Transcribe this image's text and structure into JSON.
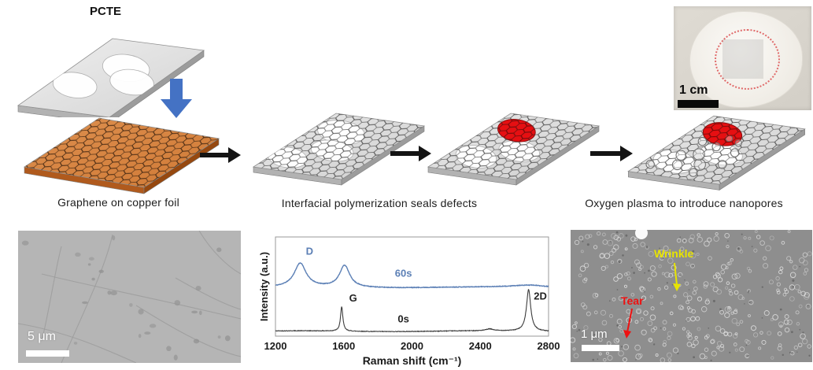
{
  "figure": {
    "steps": {
      "pcte_label": "PCTE",
      "copper_caption": "Graphene on copper foil",
      "ip_caption": "Interfacial polymerization seals defects",
      "plasma_caption": "Oxygen plasma to introduce nanopores"
    },
    "photo": {
      "scale_label": "1 cm"
    },
    "sem_left": {
      "scale_label": "5 μm"
    },
    "sem_right": {
      "scale_label": "1 μm",
      "wrinkle_label": "Wrinkle",
      "tear_label": "Tear",
      "wrinkle_color": "#e8e400",
      "tear_color": "#ee1111"
    },
    "colors": {
      "copper_top": "#d07a36",
      "copper_front": "#b05a1d",
      "copper_side": "#96480f",
      "slab_gray_light": "#e9e9e9",
      "slab_gray_dark": "#cfcfcf",
      "slab_front": "#b2b2b2",
      "slab_side": "#9c9c9c",
      "hex_line_gray": "#4d4d4d",
      "hex_line_copper": "#3e2410",
      "hex_line_red": "#8b0000",
      "seal_red": "#e60f12",
      "arrow_blue": "#4472c4",
      "arrow_black": "#141414"
    }
  },
  "chart_data": {
    "type": "line",
    "title": "",
    "xlabel": "Raman shift  (cm⁻¹)",
    "ylabel": "Intensity (a.u.)",
    "xlim": [
      1200,
      2800
    ],
    "xticks": [
      1200,
      1600,
      2000,
      2400,
      2800
    ],
    "grid": false,
    "legend_position": "inline",
    "series": [
      {
        "name": "60s",
        "color": "#5b7fb5",
        "baseline": 0.49,
        "peaks": [
          {
            "label": "D",
            "center": 1345,
            "height": 0.24,
            "hwhm": 42
          },
          {
            "center": 1605,
            "height": 0.22,
            "hwhm": 36
          },
          {
            "center": 2690,
            "height": 0.025,
            "hwhm": 120
          }
        ]
      },
      {
        "name": "0s",
        "color": "#3c3c3c",
        "baseline": 0.05,
        "peaks": [
          {
            "label": "G",
            "center": 1588,
            "height": 0.25,
            "hwhm": 8
          },
          {
            "center": 2455,
            "height": 0.018,
            "hwhm": 25
          },
          {
            "label": "2D",
            "center": 2683,
            "height": 0.42,
            "hwhm": 15
          }
        ]
      }
    ],
    "annotations": [
      {
        "text": "D",
        "x": 1400,
        "y": 0.82,
        "color": "#5b7fb5"
      },
      {
        "text": "60s",
        "x": 1950,
        "y": 0.6,
        "color": "#5b7fb5"
      },
      {
        "text": "G",
        "x": 1655,
        "y": 0.35,
        "color": "#222222"
      },
      {
        "text": "0s",
        "x": 1950,
        "y": 0.14,
        "color": "#222222"
      },
      {
        "text": "2D",
        "x": 2752,
        "y": 0.37,
        "color": "#222222"
      }
    ]
  }
}
